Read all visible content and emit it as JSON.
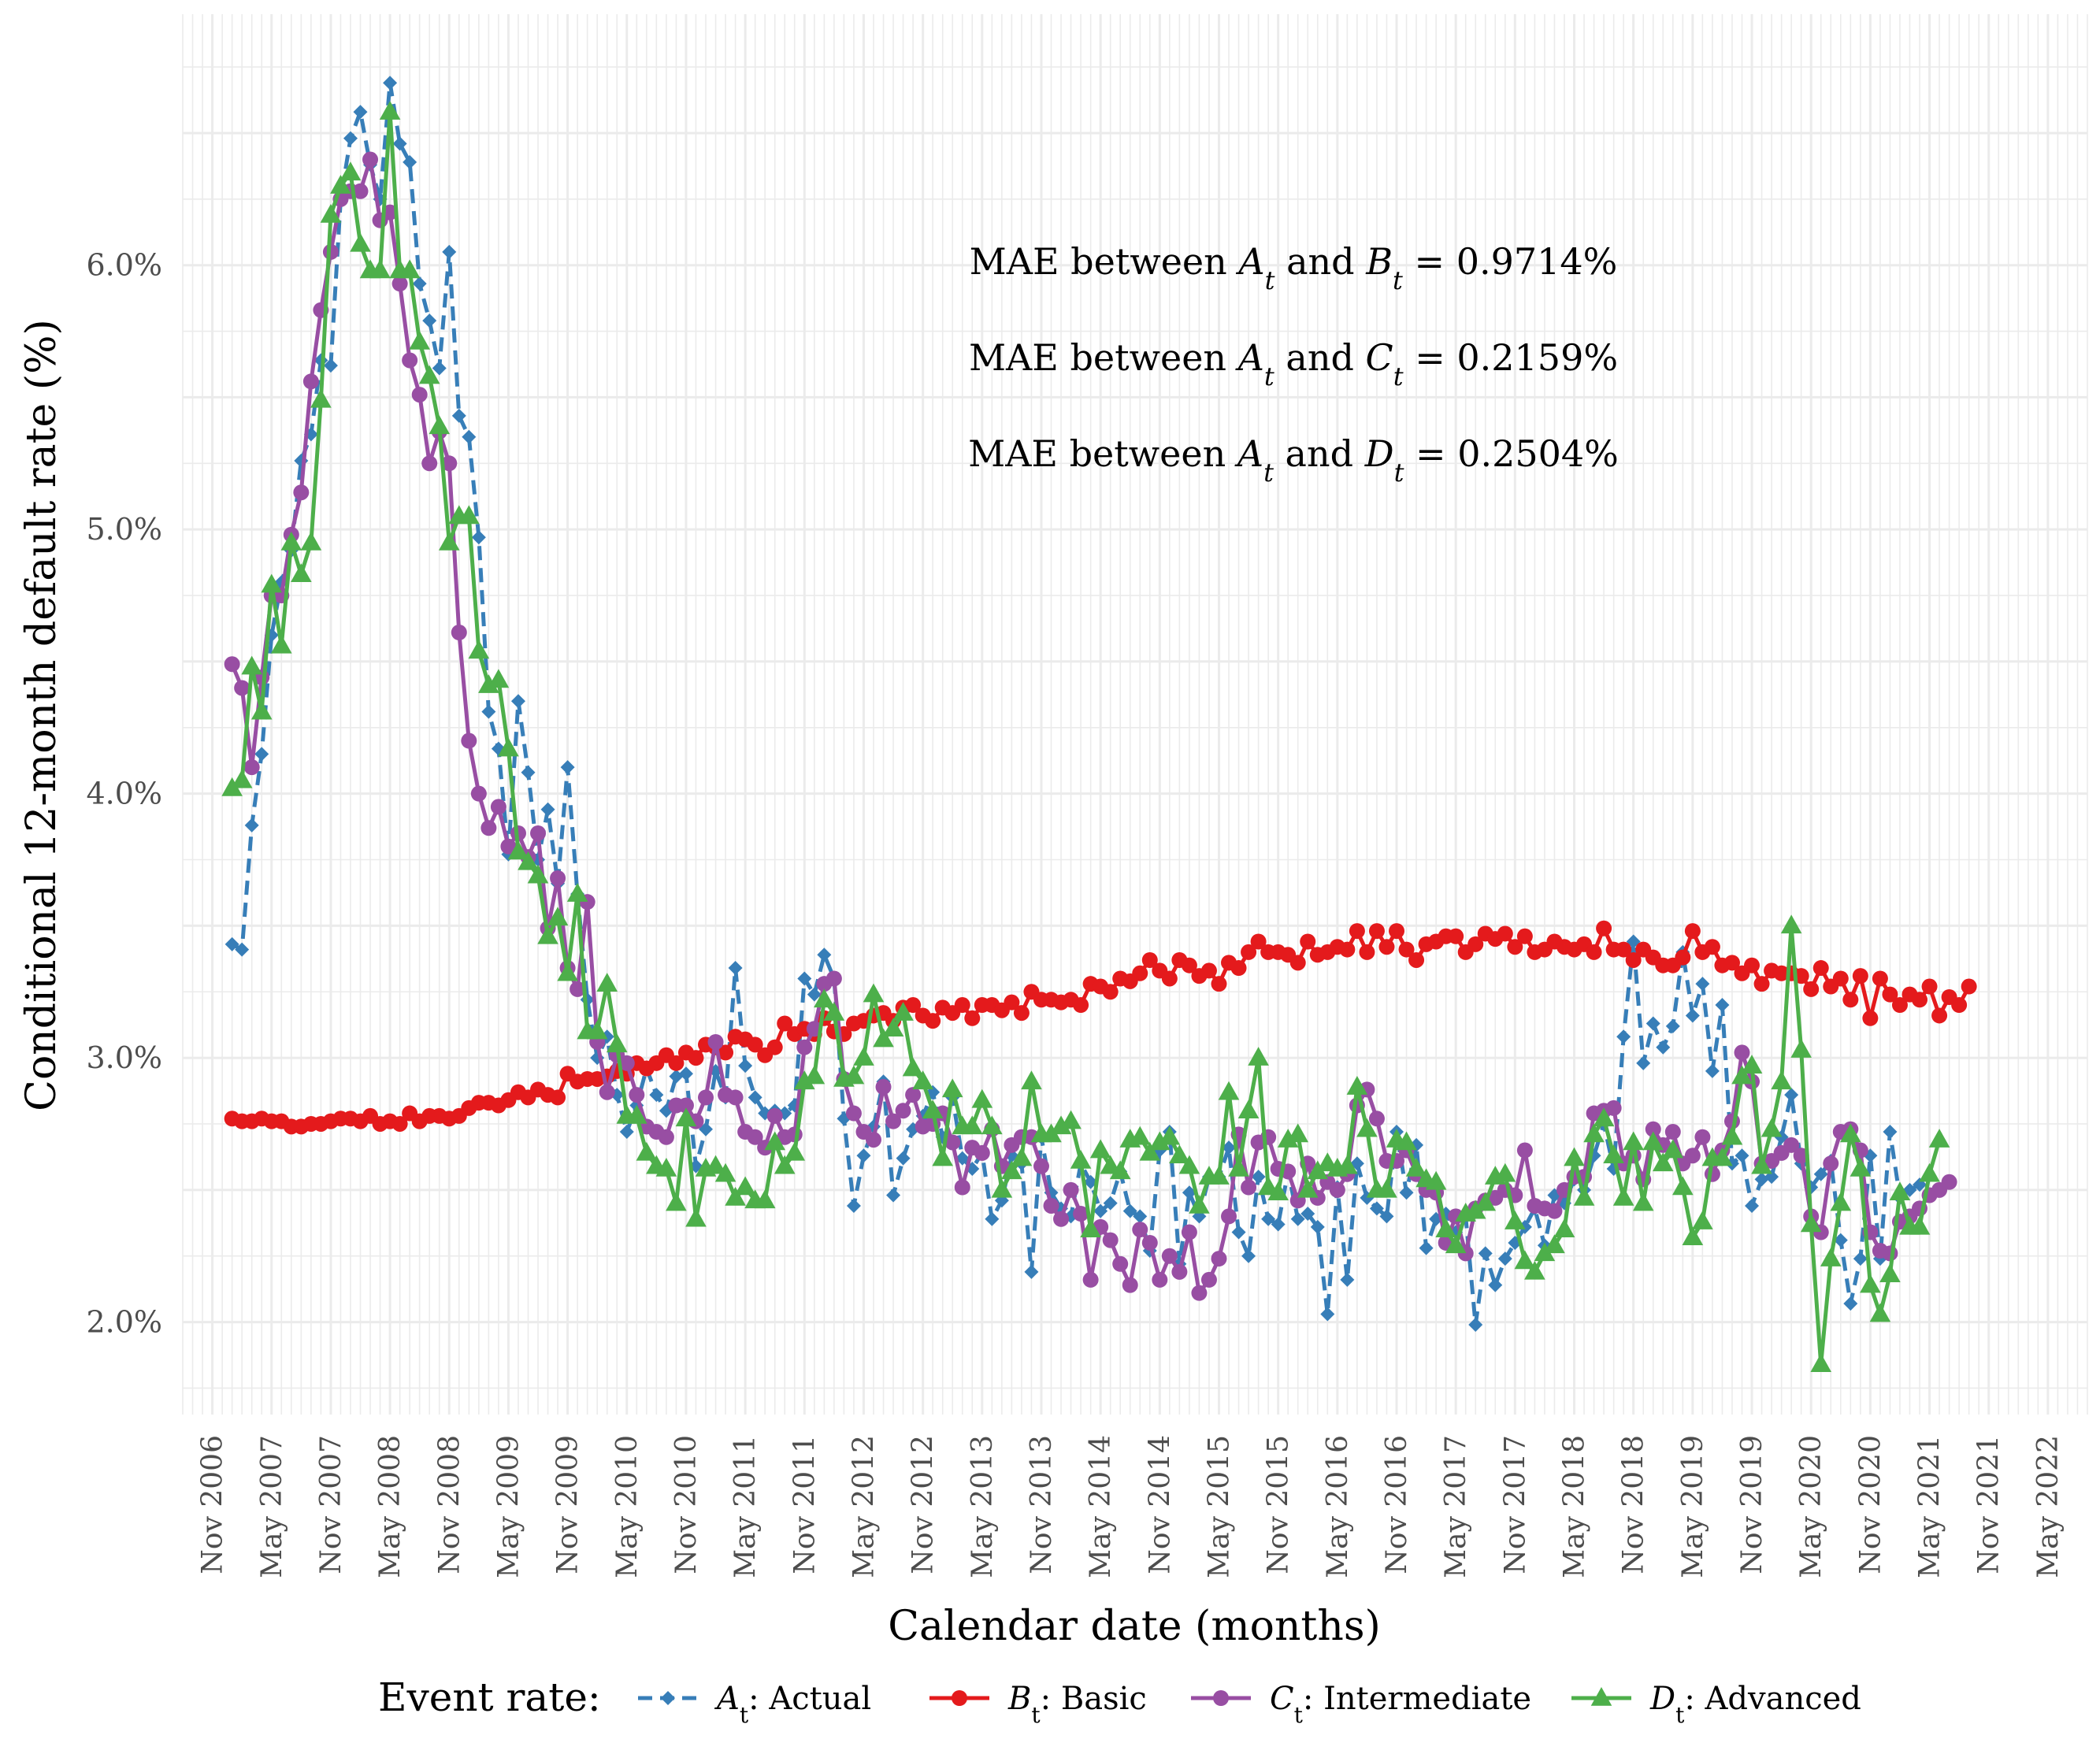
{
  "chart_data": {
    "type": "line",
    "title": "",
    "xlabel": "Calendar date (months)",
    "ylabel": "Conditional 12-month default rate (%)",
    "x_ticks": [
      "Nov 2006",
      "May 2007",
      "Nov 2007",
      "May 2008",
      "Nov 2008",
      "May 2009",
      "Nov 2009",
      "May 2010",
      "Nov 2010",
      "May 2011",
      "Nov 2011",
      "May 2012",
      "Nov 2012",
      "May 2013",
      "Nov 2013",
      "May 2014",
      "Nov 2014",
      "May 2015",
      "Nov 2015",
      "May 2016",
      "Nov 2016",
      "May 2017",
      "Nov 2017",
      "May 2018",
      "Nov 2018",
      "May 2019",
      "Nov 2019",
      "May 2020",
      "Nov 2020",
      "May 2021",
      "Nov 2021",
      "May 2022"
    ],
    "y_ticks": [
      "2.0%",
      "3.0%",
      "4.0%",
      "5.0%",
      "6.0%"
    ],
    "y_tick_values": [
      2.0,
      3.0,
      4.0,
      5.0,
      6.0
    ],
    "x_range": [
      "2006-08",
      "2022-09"
    ],
    "ylim": [
      1.65,
      6.95
    ],
    "grid": true,
    "legend": {
      "position": "bottom",
      "title": "Event rate:",
      "entries": [
        {
          "sym": "A",
          "sub": "t",
          "text": ": Actual"
        },
        {
          "sym": "B",
          "sub": "t",
          "text": ": Basic"
        },
        {
          "sym": "C",
          "sub": "t",
          "text": ": Intermediate"
        },
        {
          "sym": "D",
          "sub": "t",
          "text": ": Advanced"
        }
      ]
    },
    "annotations": [
      {
        "prefix": "MAE between ",
        "a": "A",
        "mid": " and ",
        "b": "B",
        "value": " = 0.9714%"
      },
      {
        "prefix": "MAE between ",
        "a": "A",
        "mid": " and ",
        "b": "C",
        "value": " = 0.2159%"
      },
      {
        "prefix": "MAE between ",
        "a": "A",
        "mid": " and ",
        "b": "D",
        "value": " = 0.2504%"
      }
    ],
    "x_start": "2007-01",
    "series": [
      {
        "name": "A_t: Actual",
        "color": "#377eb8",
        "dash": true,
        "marker": "diamond",
        "values": [
          3.43,
          3.41,
          3.88,
          4.15,
          4.6,
          4.8,
          4.92,
          5.26,
          5.36,
          5.64,
          5.62,
          6.25,
          6.48,
          6.58,
          6.38,
          6.25,
          6.69,
          6.46,
          6.39,
          5.93,
          5.79,
          5.61,
          6.05,
          5.43,
          5.35,
          4.97,
          4.31,
          4.17,
          3.77,
          4.35,
          4.08,
          3.75,
          3.94,
          3.66,
          4.1,
          3.62,
          3.22,
          3.0,
          3.08,
          2.86,
          2.72,
          2.82,
          2.96,
          2.86,
          2.8,
          2.93,
          2.94,
          2.59,
          2.73,
          2.95,
          2.85,
          3.34,
          2.97,
          2.85,
          2.79,
          2.8,
          2.79,
          2.82,
          3.3,
          3.24,
          3.39,
          3.3,
          2.77,
          2.44,
          2.63,
          2.74,
          2.91,
          2.48,
          2.62,
          2.73,
          2.78,
          2.87,
          2.7,
          2.85,
          2.62,
          2.58,
          2.64,
          2.39,
          2.46,
          2.63,
          2.6,
          2.19,
          2.7,
          2.49,
          2.43,
          2.4,
          2.6,
          2.53,
          2.42,
          2.45,
          2.57,
          2.42,
          2.4,
          2.27,
          2.65,
          2.72,
          2.22,
          2.49,
          2.4,
          2.55,
          2.55,
          2.66,
          2.34,
          2.25,
          2.55,
          2.39,
          2.37,
          2.57,
          2.39,
          2.41,
          2.36,
          2.03,
          2.51,
          2.16,
          2.6,
          2.47,
          2.43,
          2.4,
          2.72,
          2.49,
          2.67,
          2.28,
          2.39,
          2.41,
          2.34,
          2.4,
          1.99,
          2.26,
          2.14,
          2.24,
          2.3,
          2.36,
          2.43,
          2.29,
          2.48,
          2.45,
          2.54,
          2.5,
          2.63,
          2.75,
          2.58,
          3.08,
          3.44,
          2.98,
          3.13,
          3.04,
          3.12,
          3.4,
          3.16,
          3.28,
          2.95,
          3.2,
          2.6,
          2.63,
          2.44,
          2.54,
          2.55,
          2.7,
          2.86,
          2.6,
          2.51,
          2.56,
          2.61,
          2.31,
          2.07,
          2.24,
          2.63,
          2.24,
          2.72,
          2.47,
          2.5,
          2.52
        ]
      },
      {
        "name": "B_t: Basic",
        "color": "#e41a1c",
        "dash": false,
        "marker": "circle",
        "values": [
          2.77,
          2.76,
          2.76,
          2.77,
          2.76,
          2.76,
          2.74,
          2.74,
          2.75,
          2.75,
          2.76,
          2.77,
          2.77,
          2.76,
          2.78,
          2.75,
          2.76,
          2.75,
          2.79,
          2.76,
          2.78,
          2.78,
          2.77,
          2.78,
          2.81,
          2.83,
          2.83,
          2.82,
          2.84,
          2.87,
          2.85,
          2.88,
          2.86,
          2.85,
          2.94,
          2.91,
          2.92,
          2.92,
          2.93,
          2.95,
          2.94,
          2.98,
          2.96,
          2.98,
          3.01,
          2.98,
          3.02,
          3.0,
          3.05,
          3.04,
          3.02,
          3.08,
          3.07,
          3.05,
          3.01,
          3.04,
          3.13,
          3.09,
          3.11,
          3.09,
          3.15,
          3.1,
          3.09,
          3.13,
          3.14,
          3.16,
          3.17,
          3.14,
          3.19,
          3.2,
          3.16,
          3.14,
          3.19,
          3.17,
          3.2,
          3.15,
          3.2,
          3.2,
          3.18,
          3.21,
          3.17,
          3.25,
          3.22,
          3.22,
          3.21,
          3.22,
          3.2,
          3.28,
          3.27,
          3.25,
          3.3,
          3.29,
          3.32,
          3.37,
          3.33,
          3.3,
          3.37,
          3.35,
          3.31,
          3.33,
          3.28,
          3.36,
          3.34,
          3.4,
          3.44,
          3.4,
          3.4,
          3.39,
          3.36,
          3.44,
          3.39,
          3.4,
          3.42,
          3.41,
          3.48,
          3.4,
          3.48,
          3.42,
          3.48,
          3.41,
          3.37,
          3.43,
          3.44,
          3.46,
          3.46,
          3.4,
          3.43,
          3.47,
          3.45,
          3.47,
          3.42,
          3.46,
          3.4,
          3.41,
          3.44,
          3.42,
          3.41,
          3.43,
          3.4,
          3.49,
          3.41,
          3.41,
          3.37,
          3.41,
          3.38,
          3.35,
          3.35,
          3.38,
          3.48,
          3.4,
          3.42,
          3.35,
          3.36,
          3.32,
          3.35,
          3.28,
          3.33,
          3.32,
          3.32,
          3.31,
          3.26,
          3.34,
          3.27,
          3.3,
          3.22,
          3.31,
          3.15,
          3.3,
          3.24,
          3.2,
          3.24,
          3.22,
          3.27,
          3.16,
          3.23,
          3.2,
          3.27
        ]
      },
      {
        "name": "C_t: Intermediate",
        "color": "#984ea3",
        "dash": false,
        "marker": "circle",
        "values": [
          4.49,
          4.4,
          4.1,
          4.44,
          4.75,
          4.75,
          4.98,
          5.14,
          5.56,
          5.83,
          6.05,
          6.25,
          6.28,
          6.28,
          6.4,
          6.17,
          6.2,
          5.93,
          5.64,
          5.51,
          5.25,
          5.37,
          5.25,
          4.61,
          4.2,
          4.0,
          3.87,
          3.95,
          3.8,
          3.85,
          3.76,
          3.85,
          3.49,
          3.68,
          3.34,
          3.26,
          3.59,
          3.06,
          2.87,
          3.01,
          2.98,
          2.86,
          2.74,
          2.72,
          2.7,
          2.82,
          2.82,
          2.76,
          2.85,
          3.06,
          2.86,
          2.85,
          2.72,
          2.7,
          2.66,
          2.78,
          2.7,
          2.71,
          3.04,
          3.11,
          3.28,
          3.3,
          2.92,
          2.79,
          2.72,
          2.69,
          2.89,
          2.76,
          2.8,
          2.86,
          2.74,
          2.75,
          2.79,
          2.68,
          2.51,
          2.66,
          2.64,
          2.73,
          2.59,
          2.67,
          2.7,
          2.7,
          2.59,
          2.44,
          2.39,
          2.5,
          2.41,
          2.16,
          2.36,
          2.31,
          2.22,
          2.14,
          2.35,
          2.3,
          2.16,
          2.25,
          2.19,
          2.34,
          2.11,
          2.16,
          2.24,
          2.4,
          2.71,
          2.51,
          2.68,
          2.7,
          2.58,
          2.57,
          2.46,
          2.6,
          2.47,
          2.53,
          2.5,
          2.56,
          2.82,
          2.88,
          2.77,
          2.61,
          2.61,
          2.65,
          2.56,
          2.5,
          2.49,
          2.3,
          2.4,
          2.26,
          2.43,
          2.46,
          2.47,
          2.5,
          2.48,
          2.65,
          2.44,
          2.43,
          2.42,
          2.5,
          2.55,
          2.55,
          2.79,
          2.8,
          2.81,
          2.6,
          2.63,
          2.54,
          2.73,
          2.67,
          2.72,
          2.6,
          2.63,
          2.7,
          2.56,
          2.65,
          2.76,
          3.02,
          2.91,
          2.6,
          2.61,
          2.64,
          2.67,
          2.63,
          2.4,
          2.34,
          2.6,
          2.72,
          2.73,
          2.65,
          2.34,
          2.27,
          2.26,
          2.38,
          2.4,
          2.43,
          2.48,
          2.5,
          2.53
        ]
      },
      {
        "name": "D_t: Advanced",
        "color": "#4daf4a",
        "dash": false,
        "marker": "triangle",
        "values": [
          4.02,
          4.05,
          4.48,
          4.31,
          4.79,
          4.56,
          4.95,
          4.83,
          4.95,
          5.49,
          6.19,
          6.3,
          6.35,
          6.08,
          5.98,
          5.98,
          6.58,
          5.98,
          5.98,
          5.71,
          5.58,
          5.39,
          4.95,
          5.05,
          5.05,
          4.54,
          4.41,
          4.43,
          4.17,
          3.78,
          3.74,
          3.69,
          3.46,
          3.53,
          3.32,
          3.62,
          3.1,
          3.1,
          3.28,
          3.05,
          2.78,
          2.78,
          2.64,
          2.59,
          2.58,
          2.45,
          2.77,
          2.39,
          2.58,
          2.59,
          2.56,
          2.47,
          2.51,
          2.46,
          2.46,
          2.68,
          2.59,
          2.64,
          2.91,
          2.93,
          3.22,
          3.17,
          2.92,
          2.93,
          3.0,
          3.24,
          3.07,
          3.11,
          3.17,
          2.96,
          2.91,
          2.8,
          2.62,
          2.88,
          2.74,
          2.74,
          2.84,
          2.74,
          2.5,
          2.57,
          2.62,
          2.91,
          2.71,
          2.71,
          2.74,
          2.76,
          2.61,
          2.35,
          2.65,
          2.59,
          2.57,
          2.69,
          2.7,
          2.64,
          2.68,
          2.7,
          2.63,
          2.59,
          2.44,
          2.55,
          2.55,
          2.87,
          2.58,
          2.8,
          3.0,
          2.51,
          2.49,
          2.69,
          2.71,
          2.5,
          2.57,
          2.6,
          2.58,
          2.59,
          2.89,
          2.73,
          2.5,
          2.5,
          2.69,
          2.68,
          2.58,
          2.54,
          2.53,
          2.35,
          2.29,
          2.41,
          2.42,
          2.45,
          2.55,
          2.56,
          2.38,
          2.23,
          2.19,
          2.26,
          2.29,
          2.35,
          2.62,
          2.47,
          2.71,
          2.77,
          2.63,
          2.47,
          2.68,
          2.45,
          2.68,
          2.6,
          2.65,
          2.51,
          2.32,
          2.38,
          2.62,
          2.62,
          2.7,
          2.93,
          2.97,
          2.59,
          2.73,
          2.91,
          3.5,
          3.03,
          2.37,
          1.84,
          2.24,
          2.45,
          2.71,
          2.58,
          2.14,
          2.03,
          2.18,
          2.49,
          2.36,
          2.36,
          2.56,
          2.69
        ]
      }
    ]
  }
}
